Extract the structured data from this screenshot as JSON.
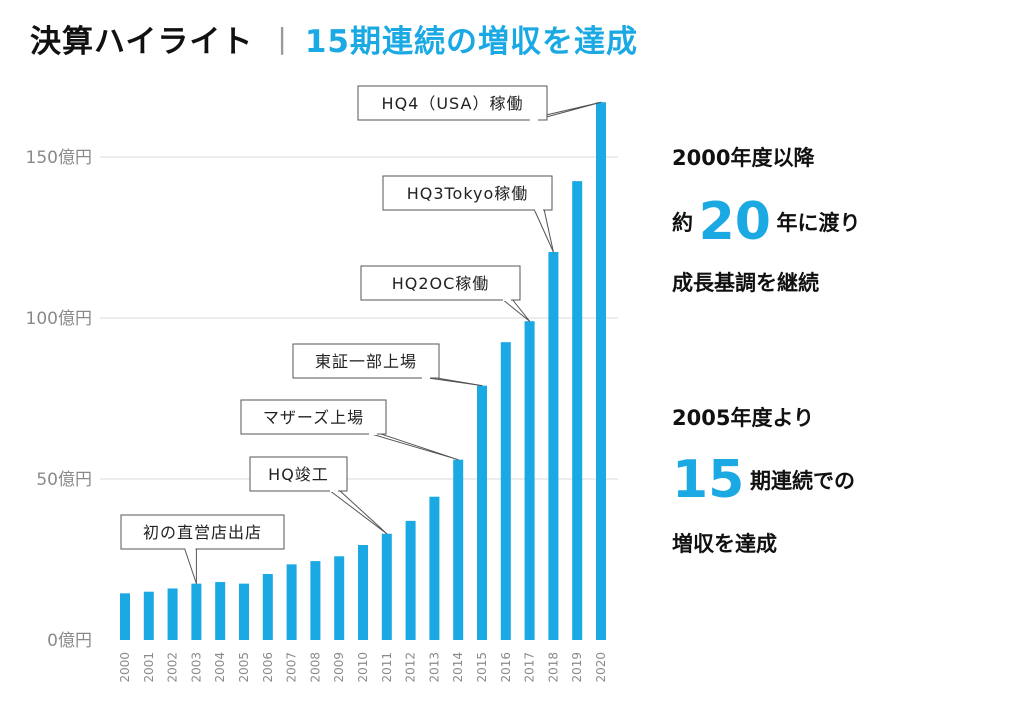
{
  "header": {
    "title": "決算ハイライト",
    "separator": "|",
    "subtitle": "15期連続の増収を達成"
  },
  "side_text": {
    "block1_line1": "2000年度以降",
    "block1_pre": "約",
    "block1_big": "20",
    "block1_post": "年に渡り",
    "block1_line3": "成長基調を継続",
    "block2_line1": "2005年度より",
    "block2_big": "15",
    "block2_post": "期連続での",
    "block2_line3": "増収を達成"
  },
  "colors": {
    "bar": "#1aa9e3",
    "accent": "#1aa9e3",
    "grid": "#d9d9d9",
    "axis_text": "#8a8a8a"
  },
  "chart_data": {
    "type": "bar",
    "categories": [
      "2000",
      "2001",
      "2002",
      "2003",
      "2004",
      "2005",
      "2006",
      "2007",
      "2008",
      "2009",
      "2010",
      "2011",
      "2012",
      "2013",
      "2014",
      "2015",
      "2016",
      "2017",
      "2018",
      "2019",
      "2020"
    ],
    "values": [
      14.5,
      15,
      16,
      17.5,
      18,
      17.5,
      20.5,
      23.5,
      24.5,
      26,
      29.5,
      33,
      37,
      44.5,
      56,
      79,
      92.5,
      99,
      120.5,
      142.5,
      167
    ],
    "ylim": [
      0,
      170
    ],
    "yticks": [
      0,
      50,
      100,
      150
    ],
    "ytick_labels": [
      "0億円",
      "50億円",
      "100億円",
      "150億円"
    ],
    "grid": true,
    "annotations": [
      {
        "text": "初の直営店出店",
        "category": "2003"
      },
      {
        "text": "HQ竣工",
        "category": "2011"
      },
      {
        "text": "マザーズ上場",
        "category": "2014"
      },
      {
        "text": "東証一部上場",
        "category": "2015"
      },
      {
        "text": "HQ2OC稼働",
        "category": "2017"
      },
      {
        "text": "HQ3Tokyo稼働",
        "category": "2018"
      },
      {
        "text": "HQ4（USA）稼働",
        "category": "2020"
      }
    ]
  }
}
